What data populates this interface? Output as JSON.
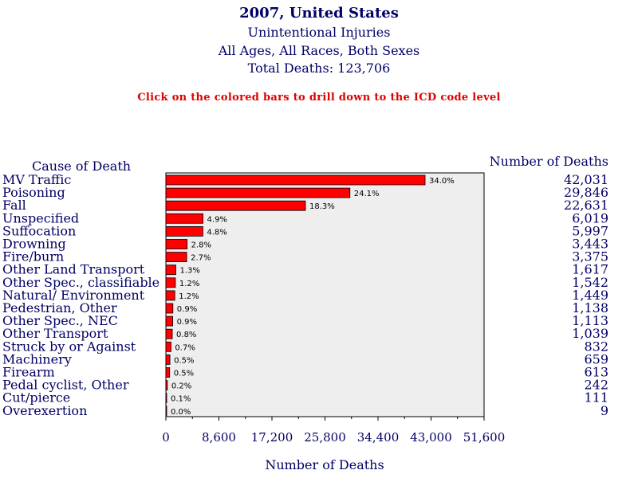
{
  "header": {
    "title": "2007, United States",
    "subtitle": "Unintentional Injuries",
    "demographics": "All Ages, All Races, Both Sexes",
    "total": "Total Deaths: 123,706",
    "instruction": "Click on the colored bars to drill down to the ICD code level"
  },
  "colors": {
    "bar": "#ff0000",
    "plot_bg": "#eeeeee",
    "text": "#000066",
    "instruction": "#dd0000"
  },
  "chart_data": {
    "type": "bar",
    "orientation": "horizontal",
    "title": "2007, United States",
    "category_header": "Cause of Death",
    "value_header": "Number of Deaths",
    "xlabel": "Number of Deaths",
    "xlim": [
      0,
      51600
    ],
    "xticks": [
      "0",
      "8,600",
      "17,200",
      "25,800",
      "34,400",
      "43,000",
      "51,600"
    ],
    "categories": [
      "MV Traffic",
      "Poisoning",
      "Fall",
      "Unspecified",
      "Suffocation",
      "Drowning",
      "Fire/burn",
      "Other Land Transport",
      "Other Spec., classifiable",
      "Natural/ Environment",
      "Pedestrian, Other",
      "Other Spec., NEC",
      "Other Transport",
      "Struck by or Against",
      "Machinery",
      "Firearm",
      "Pedal cyclist, Other",
      "Cut/pierce",
      "Overexertion"
    ],
    "values": [
      42031,
      29846,
      22631,
      6019,
      5997,
      3443,
      3375,
      1617,
      1542,
      1449,
      1138,
      1113,
      1039,
      832,
      659,
      613,
      242,
      111,
      9
    ],
    "value_labels": [
      "42,031",
      "29,846",
      "22,631",
      "6,019",
      "5,997",
      "3,443",
      "3,375",
      "1,617",
      "1,542",
      "1,449",
      "1,138",
      "1,113",
      "1,039",
      "832",
      "659",
      "613",
      "242",
      "111",
      "9"
    ],
    "percent_labels": [
      "34.0%",
      "24.1%",
      "18.3%",
      "4.9%",
      "4.8%",
      "2.8%",
      "2.7%",
      "1.3%",
      "1.2%",
      "1.2%",
      "0.9%",
      "0.9%",
      "0.8%",
      "0.7%",
      "0.5%",
      "0.5%",
      "0.2%",
      "0.1%",
      "0.0%"
    ]
  }
}
